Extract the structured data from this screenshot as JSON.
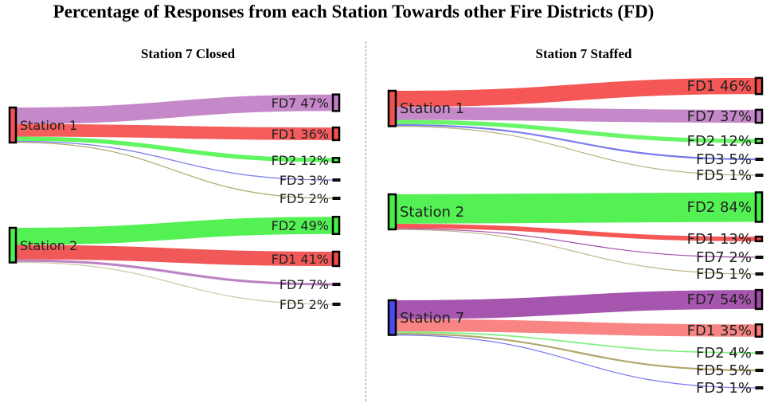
{
  "title": "Percentage of Responses from each Station Towards other Fire Districts (FD)",
  "chart_data": [
    {
      "type": "sankey",
      "title": "Station 7 Closed",
      "unit": "%",
      "sources": [
        {
          "name": "Station 1",
          "color": "#ef5350",
          "flows": [
            {
              "target": "FD7",
              "value": 47,
              "color": "#c07ec4"
            },
            {
              "target": "FD1",
              "value": 36,
              "color": "#f44e4e"
            },
            {
              "target": "FD2",
              "value": 12,
              "color": "#52f552"
            },
            {
              "target": "FD3",
              "value": 3,
              "color": "#7777ee"
            },
            {
              "target": "FD5",
              "value": 2,
              "color": "#a8a060"
            }
          ]
        },
        {
          "name": "Station 2",
          "color": "#4cf04c",
          "flows": [
            {
              "target": "FD2",
              "value": 49,
              "color": "#44f044"
            },
            {
              "target": "FD1",
              "value": 41,
              "color": "#f04a4a"
            },
            {
              "target": "FD7",
              "value": 7,
              "color": "#b777c0"
            },
            {
              "target": "FD5",
              "value": 2,
              "color": "#c8c4a0"
            }
          ]
        }
      ]
    },
    {
      "type": "sankey",
      "title": "Station 7 Staffed",
      "unit": "%",
      "sources": [
        {
          "name": "Station 1",
          "color": "#ef5350",
          "flows": [
            {
              "target": "FD1",
              "value": 46,
              "color": "#f44848"
            },
            {
              "target": "FD7",
              "value": 37,
              "color": "#c07ec4"
            },
            {
              "target": "FD2",
              "value": 12,
              "color": "#5cf55c"
            },
            {
              "target": "FD3",
              "value": 5,
              "color": "#7070ee"
            },
            {
              "target": "FD5",
              "value": 1,
              "color": "#b0aa70"
            }
          ]
        },
        {
          "name": "Station 2",
          "color": "#44f044",
          "flows": [
            {
              "target": "FD2",
              "value": 84,
              "color": "#44f044"
            },
            {
              "target": "FD1",
              "value": 13,
              "color": "#f44848"
            },
            {
              "target": "FD7",
              "value": 2,
              "color": "#9a3fa6"
            },
            {
              "target": "FD5",
              "value": 1,
              "color": "#b8b080"
            }
          ]
        },
        {
          "name": "Station 7",
          "color": "#4a4af0",
          "flows": [
            {
              "target": "FD7",
              "value": 54,
              "color": "#9e48a8"
            },
            {
              "target": "FD1",
              "value": 35,
              "color": "#f77a7a"
            },
            {
              "target": "FD2",
              "value": 4,
              "color": "#77f077"
            },
            {
              "target": "FD5",
              "value": 5,
              "color": "#a8a060"
            },
            {
              "target": "FD3",
              "value": 1,
              "color": "#6a6aee"
            }
          ]
        }
      ]
    }
  ]
}
